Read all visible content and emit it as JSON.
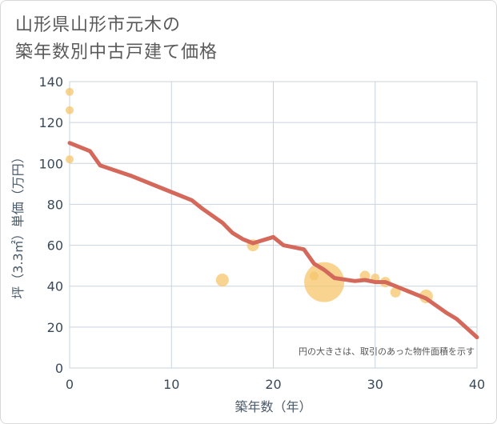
{
  "title_lines": [
    "山形県山形市元木の",
    "築年数別中古戸建て価格"
  ],
  "chart_data": {
    "type": "scatter",
    "title": "山形県山形市元木の築年数別中古戸建て価格",
    "xlabel": "築年数（年）",
    "ylabel": "坪（3.3㎡）単価（万円）",
    "xlim": [
      0,
      40
    ],
    "ylim": [
      0,
      140
    ],
    "xticks": [
      0,
      10,
      20,
      30,
      40
    ],
    "yticks": [
      0,
      20,
      40,
      60,
      80,
      100,
      120,
      140
    ],
    "grid": true,
    "note": "円の大きさは、取引のあった物件面積を示す",
    "scatter_points": [
      {
        "x": 0,
        "y": 135,
        "size": 1.0
      },
      {
        "x": 0,
        "y": 126,
        "size": 1.0
      },
      {
        "x": 0,
        "y": 102,
        "size": 1.0
      },
      {
        "x": 15,
        "y": 43,
        "size": 1.6
      },
      {
        "x": 18,
        "y": 60,
        "size": 1.5
      },
      {
        "x": 24,
        "y": 45,
        "size": 1.1
      },
      {
        "x": 25,
        "y": 42,
        "size": 5.0
      },
      {
        "x": 29,
        "y": 45,
        "size": 1.3
      },
      {
        "x": 30,
        "y": 44,
        "size": 1.1
      },
      {
        "x": 31,
        "y": 42,
        "size": 1.3
      },
      {
        "x": 32,
        "y": 37,
        "size": 1.3
      },
      {
        "x": 35,
        "y": 35,
        "size": 1.7
      }
    ],
    "trend_line": {
      "x": [
        0,
        2,
        3,
        6,
        9,
        12,
        13,
        15,
        16,
        17,
        18,
        20,
        21,
        23,
        24,
        25,
        26,
        28,
        29,
        30,
        31,
        33,
        35,
        37,
        38,
        40
      ],
      "y": [
        110,
        106,
        99,
        94,
        88,
        82,
        78,
        71,
        66,
        63,
        61,
        64,
        60,
        58,
        51,
        48,
        44,
        42.5,
        43,
        42,
        42,
        38,
        34,
        27,
        24,
        15
      ]
    },
    "colors": {
      "point": "#f5c56b",
      "line": "#d4685a",
      "grid": "#c9d3de"
    }
  }
}
